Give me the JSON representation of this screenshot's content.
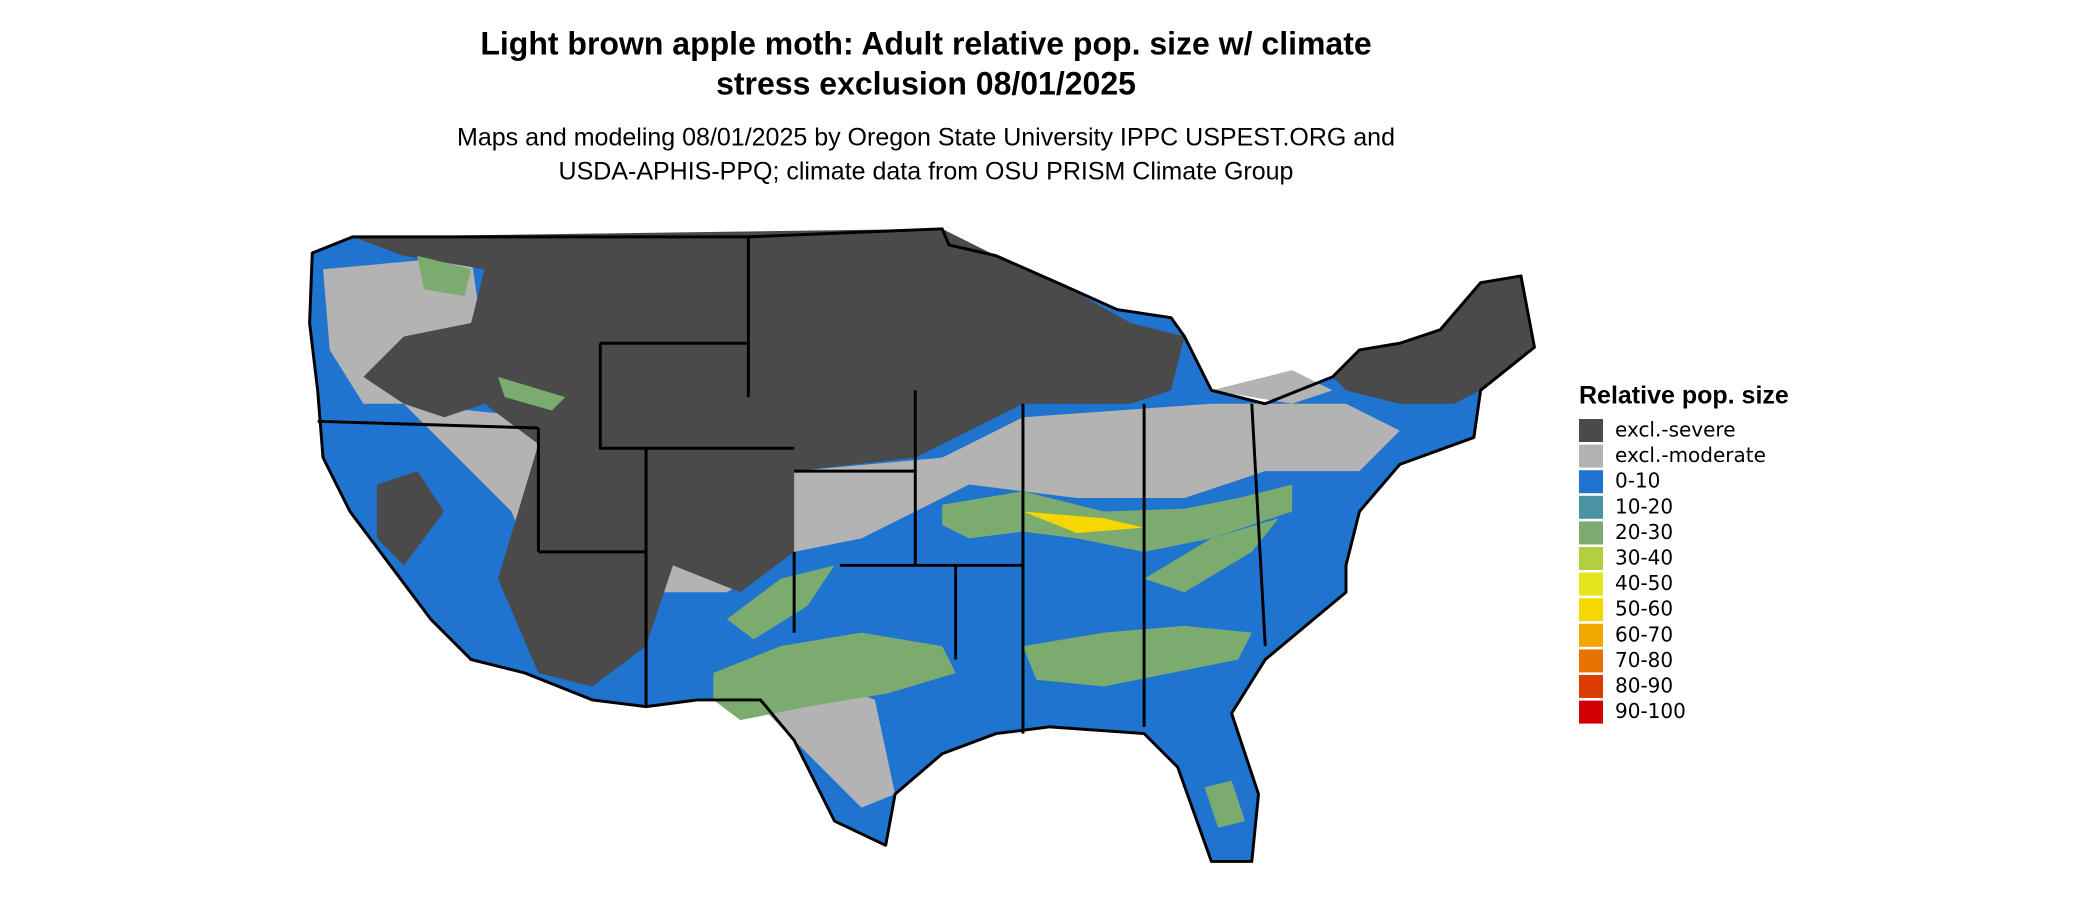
{
  "title": [
    "Light brown apple moth: Adult relative pop. size w/ climate",
    "stress exclusion 08/01/2025"
  ],
  "subtitle": [
    "Maps and modeling 08/01/2025 by Oregon State University IPPC USPEST.ORG and",
    "USDA-APHIS-PPQ; climate data from OSU PRISM Climate Group"
  ],
  "legend": {
    "title": "Relative pop. size",
    "items": [
      {
        "label": "excl.-severe",
        "color": "#4a4a4a"
      },
      {
        "label": "excl.-moderate",
        "color": "#b3b3b3"
      },
      {
        "label": "0-10",
        "color": "#1f74d0"
      },
      {
        "label": "10-20",
        "color": "#4a93a3"
      },
      {
        "label": "20-30",
        "color": "#7bab6e"
      },
      {
        "label": "30-40",
        "color": "#b2cf3e"
      },
      {
        "label": "40-50",
        "color": "#e4e61c"
      },
      {
        "label": "50-60",
        "color": "#f6d800"
      },
      {
        "label": "60-70",
        "color": "#f0a800"
      },
      {
        "label": "70-80",
        "color": "#e67300"
      },
      {
        "label": "80-90",
        "color": "#db3c00"
      },
      {
        "label": "90-100",
        "color": "#d30000"
      }
    ]
  }
}
